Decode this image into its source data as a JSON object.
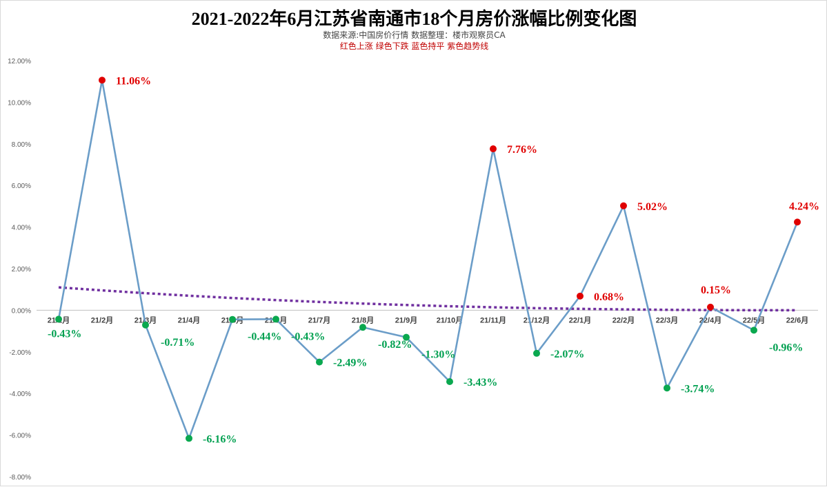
{
  "header": {
    "title": "2021-2022年6月江苏省南通市18个月房价涨幅比例变化图",
    "subtitle": "数据来源:中国房价行情   数据整理：楼市观察员CA",
    "legend_note": "红色上涨   绿色下跌   蓝色持平   紫色趋势线"
  },
  "colors": {
    "line": "#6b9dc8",
    "up": "#e00000",
    "down": "#0aa84f",
    "trend": "#7030a0",
    "up_label": "#e00000",
    "down_label": "#00a050"
  },
  "chart_data": {
    "type": "line",
    "title": "2021-2022年6月江苏省南通市18个月房价涨幅比例变化图",
    "categories": [
      "21/1月",
      "21/2月",
      "21/3月",
      "21/4月",
      "21/5月",
      "21/6月",
      "21/7月",
      "21/8月",
      "21/9月",
      "21/10月",
      "21/11月",
      "21/12月",
      "22/1月",
      "22/2月",
      "22/3月",
      "22/4月",
      "22/5月",
      "22/6月"
    ],
    "series": [
      {
        "values": [
          -0.43,
          11.06,
          -0.71,
          -6.16,
          -0.44,
          -0.43,
          -2.49,
          -0.82,
          -1.3,
          -3.43,
          7.76,
          -2.07,
          0.68,
          5.02,
          -3.74,
          0.15,
          -0.96,
          4.24
        ]
      }
    ],
    "data_labels": [
      "-0.43%",
      "11.06%",
      "-0.71%",
      "-6.16%",
      "-0.44%",
      "-0.43%",
      "-2.49%",
      "-0.82%",
      "-1.30%",
      "-3.43%",
      "7.76%",
      "-2.07%",
      "0.68%",
      "5.02%",
      "-3.74%",
      "0.15%",
      "-0.96%",
      "4.24%"
    ],
    "trendline": {
      "type": "power",
      "start": 1.1,
      "end": 0.0
    },
    "ylim": [
      -8,
      12
    ],
    "yticks": [
      -8,
      -6,
      -4,
      -2,
      0,
      2,
      4,
      6,
      8,
      10,
      12
    ],
    "ytick_labels": [
      "-8.00%",
      "-6.00%",
      "-4.00%",
      "-2.00%",
      "0.00%",
      "2.00%",
      "4.00%",
      "6.00%",
      "8.00%",
      "10.00%",
      "12.00%"
    ],
    "grid": false,
    "legend": "none"
  }
}
